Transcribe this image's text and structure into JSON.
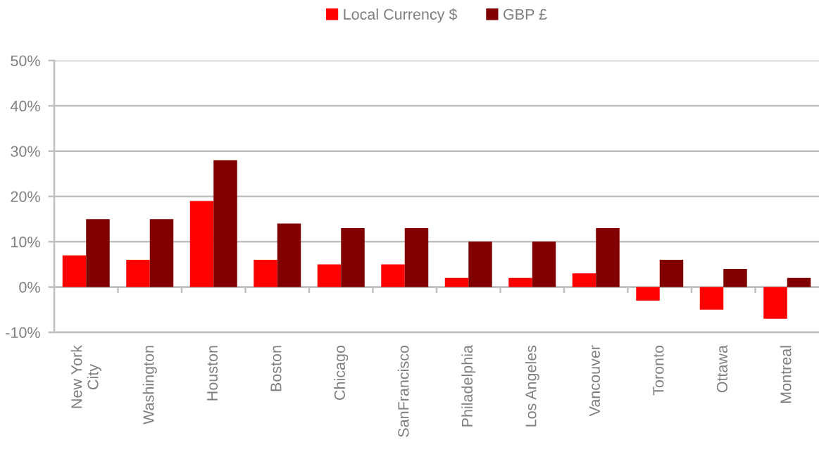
{
  "chart_data": {
    "type": "bar",
    "categories": [
      "New York\nCity",
      "Washington",
      "Houston",
      "Boston",
      "Chicago",
      "SanFrancisco",
      "Philadelphia",
      "Los Angeles",
      "Vancouver",
      "Toronto",
      "Ottawa",
      "Montreal"
    ],
    "series": [
      {
        "name": "Local Currency $",
        "color": "#ff0000",
        "values": [
          7,
          6,
          19,
          6,
          5,
          5,
          2,
          2,
          3,
          -3,
          -5,
          -7
        ]
      },
      {
        "name": "GBP £",
        "color": "#800000",
        "values": [
          15,
          15,
          28,
          14,
          13,
          13,
          10,
          10,
          13,
          6,
          4,
          2
        ]
      }
    ],
    "ylim": [
      -10,
      50
    ],
    "yticks": [
      {
        "value": -10,
        "label": "-10%"
      },
      {
        "value": 0,
        "label": "0%"
      },
      {
        "value": 10,
        "label": "10%"
      },
      {
        "value": 20,
        "label": "20%"
      },
      {
        "value": 30,
        "label": "30%"
      },
      {
        "value": 40,
        "label": "40%"
      },
      {
        "value": 50,
        "label": "50%"
      }
    ],
    "grid": "y",
    "legend": "top"
  }
}
